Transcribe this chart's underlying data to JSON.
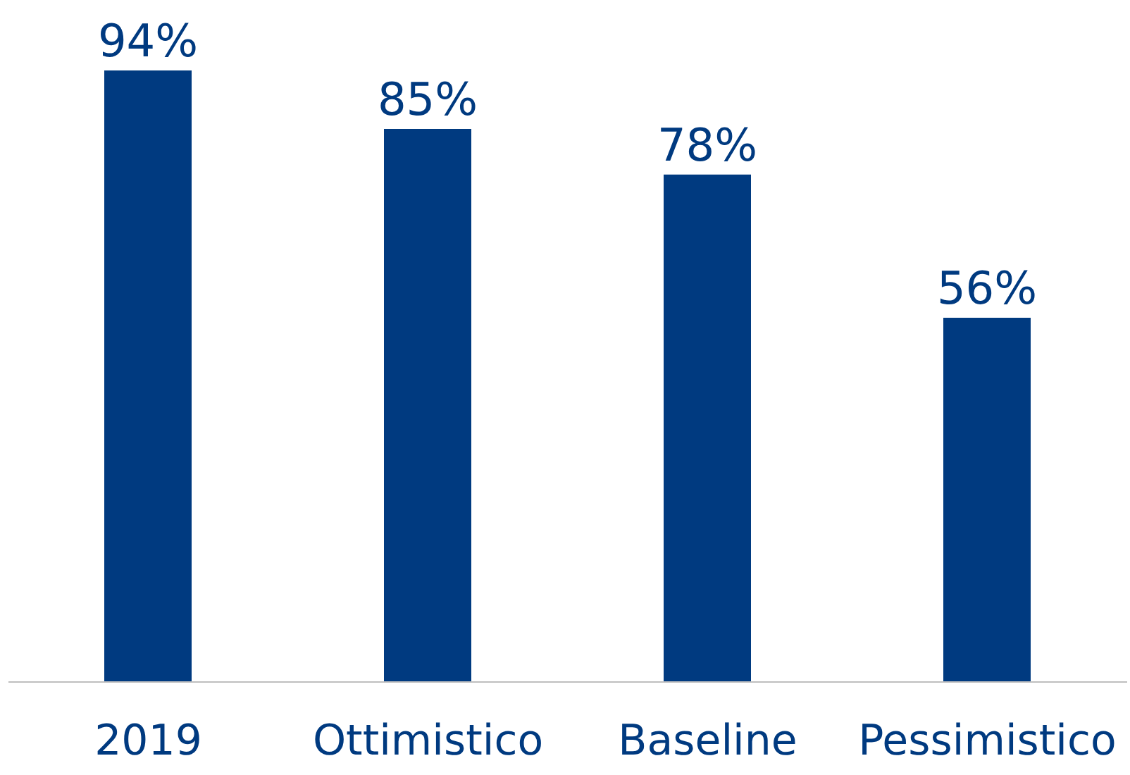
{
  "chart_data": {
    "type": "bar",
    "categories": [
      "2019",
      "Ottimistico",
      "Baseline",
      "Pessimistico"
    ],
    "values": [
      94,
      85,
      78,
      56
    ],
    "value_labels": [
      "94%",
      "85%",
      "78%",
      "56%"
    ],
    "color": "#003a80",
    "grid": false,
    "legend": false
  }
}
